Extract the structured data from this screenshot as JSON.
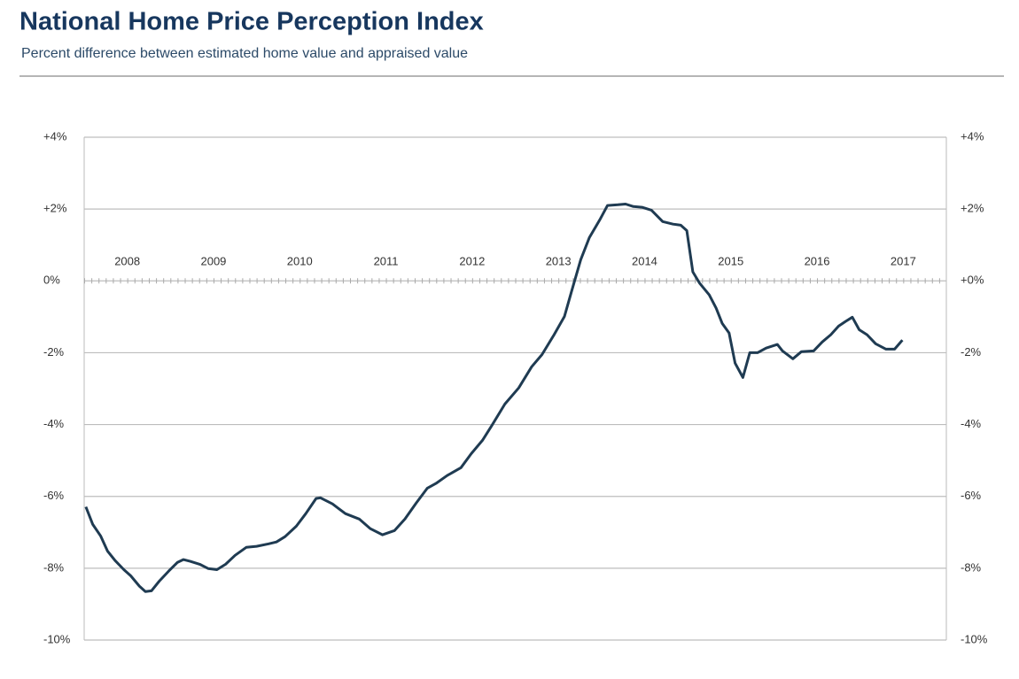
{
  "chart_data": {
    "type": "line",
    "title": "National Home Price Perception Index",
    "subtitle": "Percent difference between estimated home value and appraised value",
    "grid": true,
    "xlim": [
      2008,
      2018
    ],
    "xticks": [
      {
        "value": 2008.5,
        "label": "2008"
      },
      {
        "value": 2009.5,
        "label": "2009"
      },
      {
        "value": 2010.5,
        "label": "2010"
      },
      {
        "value": 2011.5,
        "label": "2011"
      },
      {
        "value": 2012.5,
        "label": "2012"
      },
      {
        "value": 2013.5,
        "label": "2013"
      },
      {
        "value": 2014.5,
        "label": "2014"
      },
      {
        "value": 2015.5,
        "label": "2015"
      },
      {
        "value": 2016.5,
        "label": "2016"
      },
      {
        "value": 2017.5,
        "label": "2017"
      }
    ],
    "ylim": [
      -10,
      4
    ],
    "yticks": [
      {
        "value": 4,
        "label": "+4%"
      },
      {
        "value": 2,
        "label": "+2%"
      },
      {
        "value": 0,
        "label": "0%"
      },
      {
        "value": -2,
        "label": "-2%"
      },
      {
        "value": -4,
        "label": "-4%"
      },
      {
        "value": -6,
        "label": "-6%"
      },
      {
        "value": -8,
        "label": "-8%"
      },
      {
        "value": -10,
        "label": "-10%"
      }
    ],
    "y2lim": [
      -10,
      4
    ],
    "y2ticks": [
      {
        "value": 4,
        "label": "+4%"
      },
      {
        "value": 2,
        "label": "+2%"
      },
      {
        "value": 0,
        "label": "+0%"
      },
      {
        "value": -2,
        "label": "-2%"
      },
      {
        "value": -4,
        "label": "-4%"
      },
      {
        "value": -6,
        "label": "-6%"
      },
      {
        "value": -8,
        "label": "-8%"
      },
      {
        "value": -10,
        "label": "-10%"
      }
    ],
    "series": [
      {
        "color": "#1f3b52",
        "x": [
          2008.02,
          2008.1,
          2008.19,
          2008.27,
          2008.36,
          2008.46,
          2008.54,
          2008.64,
          2008.71,
          2008.78,
          2008.87,
          2008.98,
          2009.08,
          2009.15,
          2009.23,
          2009.34,
          2009.44,
          2009.54,
          2009.64,
          2009.75,
          2009.88,
          2010.0,
          2010.14,
          2010.23,
          2010.33,
          2010.46,
          2010.57,
          2010.69,
          2010.74,
          2010.88,
          2011.03,
          2011.19,
          2011.32,
          2011.46,
          2011.6,
          2011.72,
          2011.85,
          2011.98,
          2012.08,
          2012.21,
          2012.37,
          2012.49,
          2012.62,
          2012.73,
          2012.88,
          2013.04,
          2013.19,
          2013.31,
          2013.45,
          2013.57,
          2013.65,
          2013.76,
          2013.86,
          2013.98,
          2014.07,
          2014.19,
          2014.28,
          2014.37,
          2014.47,
          2014.58,
          2014.71,
          2014.83,
          2014.92,
          2014.99,
          2015.06,
          2015.14,
          2015.25,
          2015.33,
          2015.4,
          2015.48,
          2015.55,
          2015.64,
          2015.72,
          2015.81,
          2015.91,
          2016.04,
          2016.1,
          2016.22,
          2016.32,
          2016.46,
          2016.56,
          2016.66,
          2016.75,
          2016.83,
          2016.91,
          2016.99,
          2017.08,
          2017.18,
          2017.3,
          2017.4,
          2017.49
        ],
        "values": [
          -6.29,
          -6.78,
          -7.1,
          -7.52,
          -7.79,
          -8.04,
          -8.21,
          -8.5,
          -8.65,
          -8.63,
          -8.36,
          -8.08,
          -7.84,
          -7.76,
          -7.81,
          -7.89,
          -8.01,
          -8.04,
          -7.89,
          -7.64,
          -7.42,
          -7.39,
          -7.32,
          -7.27,
          -7.12,
          -6.83,
          -6.48,
          -6.06,
          -6.04,
          -6.21,
          -6.48,
          -6.63,
          -6.9,
          -7.07,
          -6.95,
          -6.63,
          -6.19,
          -5.77,
          -5.64,
          -5.42,
          -5.2,
          -4.81,
          -4.44,
          -4.02,
          -3.43,
          -2.98,
          -2.39,
          -2.05,
          -1.5,
          -0.99,
          -0.32,
          0.59,
          1.21,
          1.7,
          2.1,
          2.12,
          2.14,
          2.07,
          2.05,
          1.97,
          1.65,
          1.58,
          1.55,
          1.4,
          0.25,
          -0.07,
          -0.39,
          -0.76,
          -1.18,
          -1.45,
          -2.29,
          -2.69,
          -2.0,
          -2.0,
          -1.87,
          -1.77,
          -1.95,
          -2.17,
          -1.97,
          -1.95,
          -1.7,
          -1.5,
          -1.26,
          -1.13,
          -1.01,
          -1.36,
          -1.5,
          -1.75,
          -1.9,
          -1.9,
          -1.65
        ]
      }
    ]
  }
}
